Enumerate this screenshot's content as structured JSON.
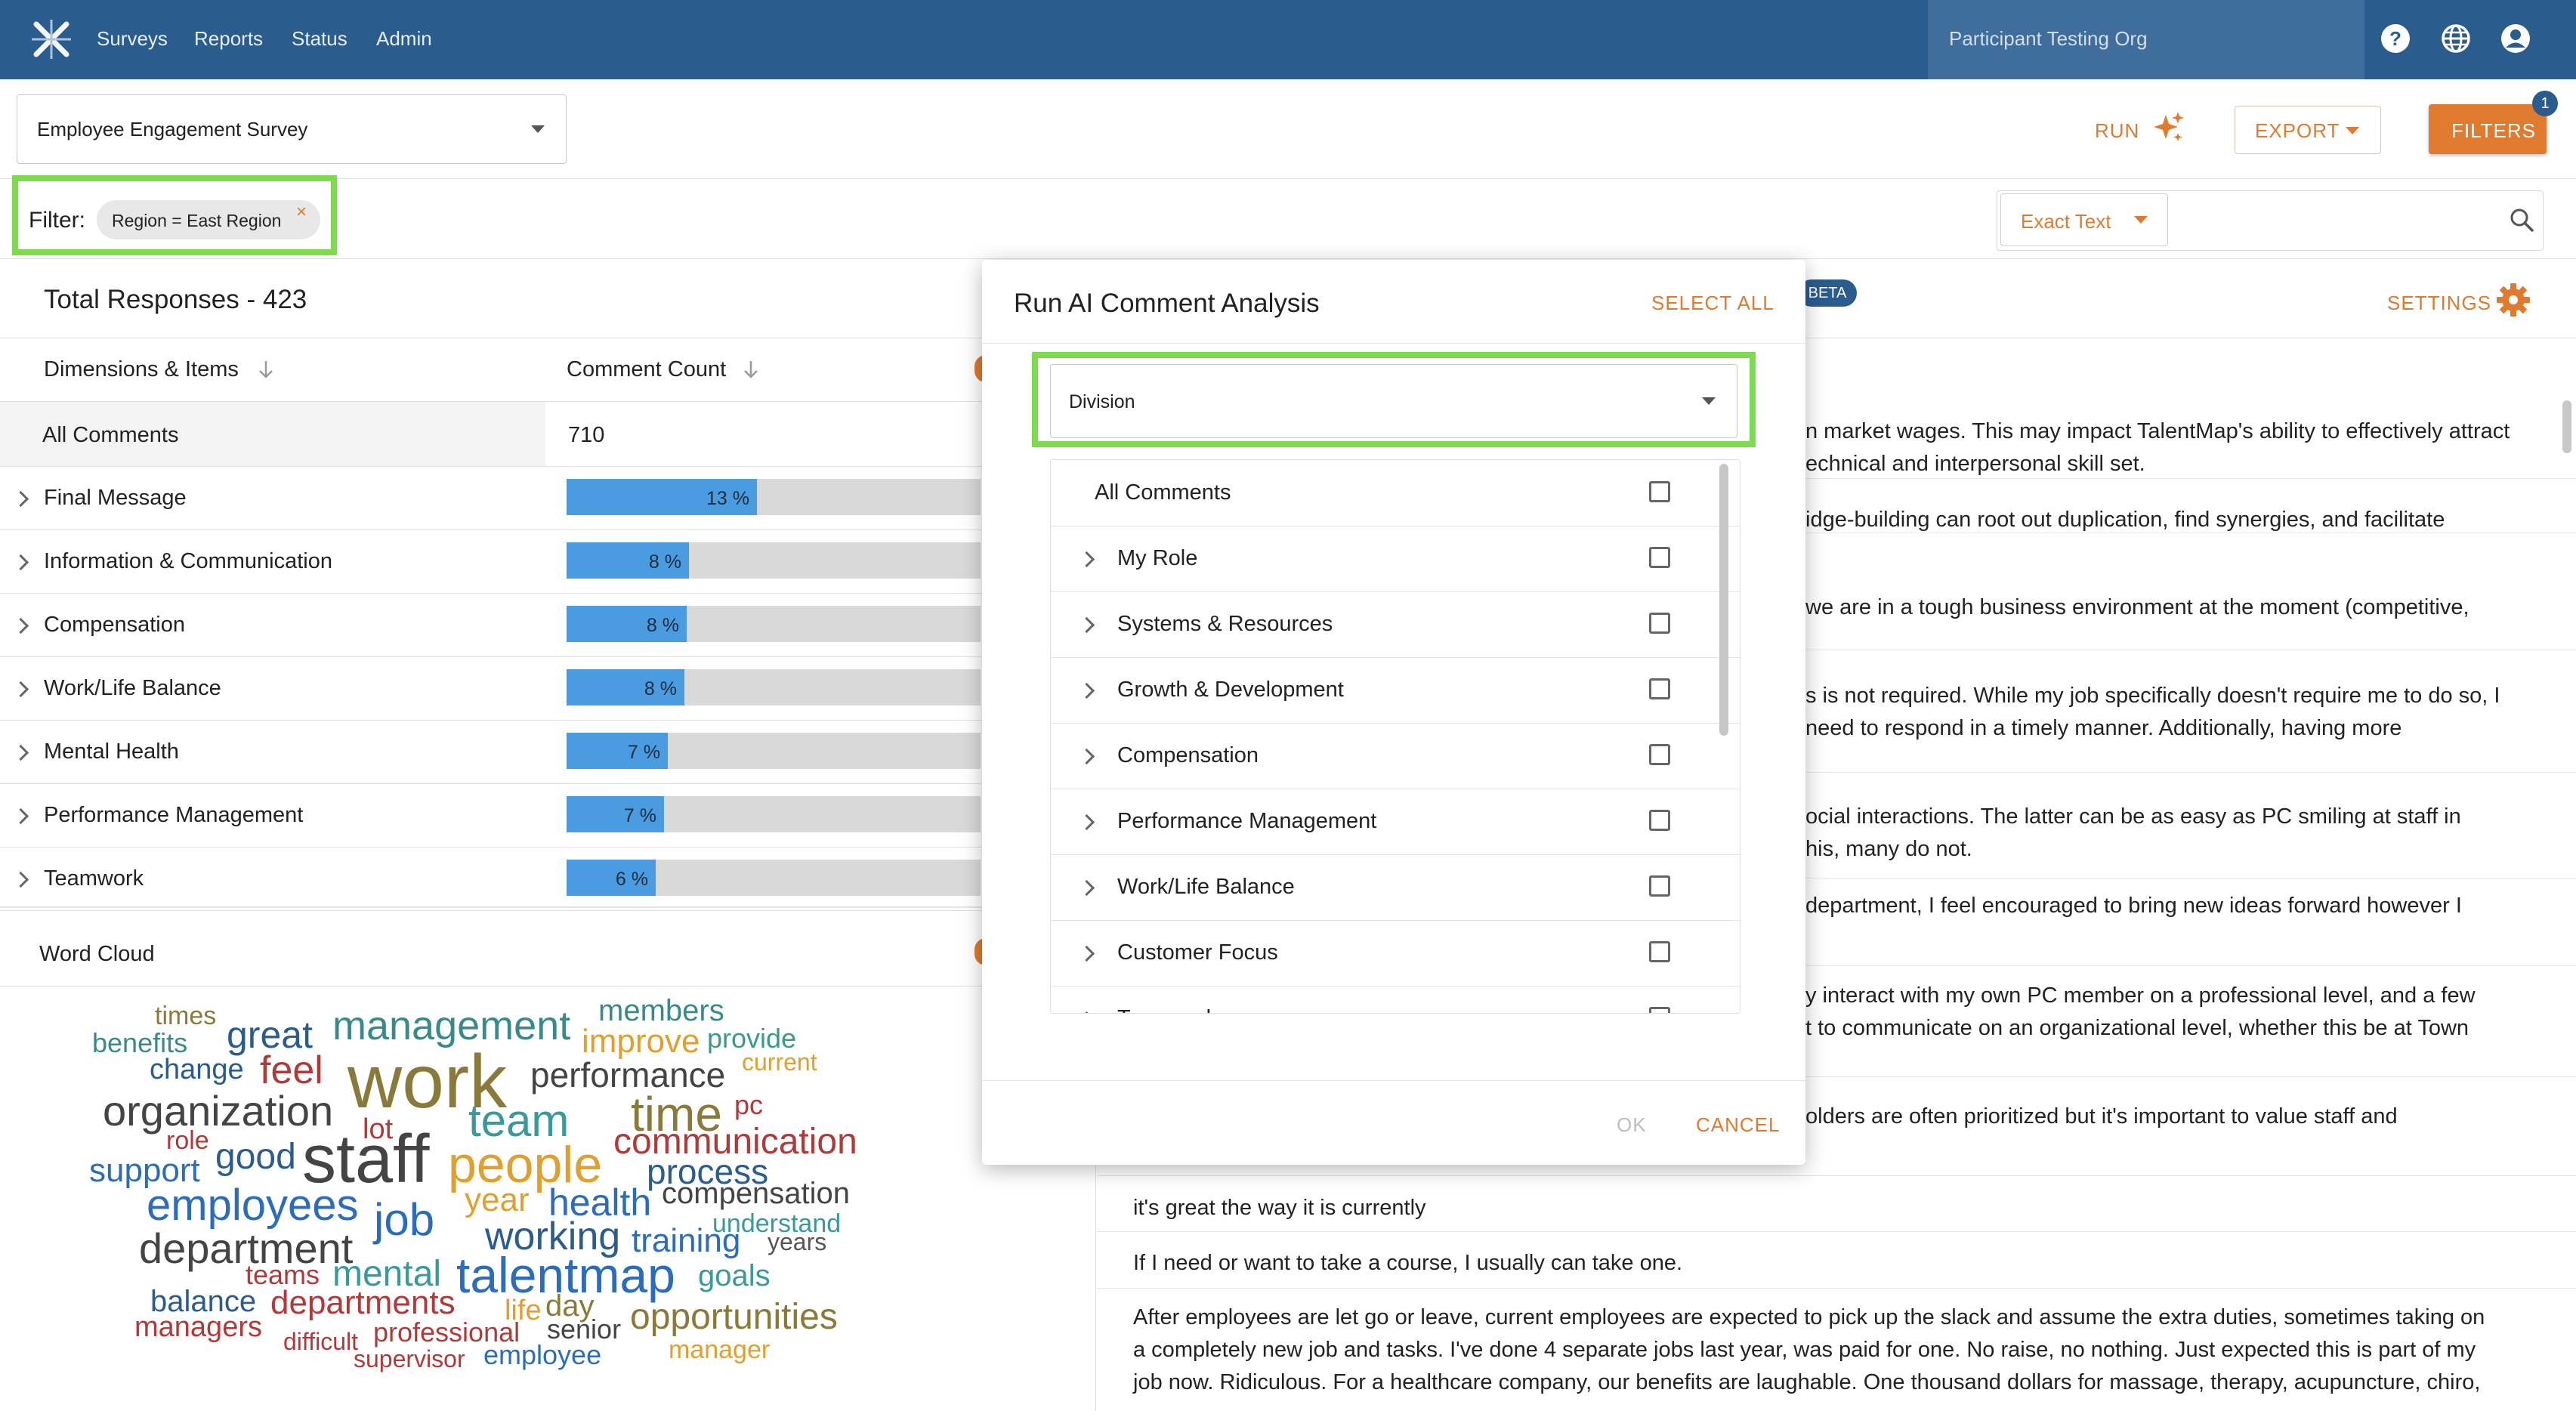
{
  "nav": {
    "links": [
      "Surveys",
      "Reports",
      "Status",
      "Admin"
    ],
    "org": "Participant Testing Org",
    "icons": [
      "help-icon",
      "globe-icon",
      "account-icon"
    ]
  },
  "toolbar": {
    "survey": "Employee Engagement Survey",
    "run": "RUN",
    "export": "EXPORT",
    "filters": "FILTERS",
    "filters_badge": "1"
  },
  "filter": {
    "label": "Filter:",
    "chip": "Region = East Region",
    "chip_remove": "×",
    "search_mode": "Exact Text"
  },
  "summary": {
    "total": "Total Responses - 423"
  },
  "table": {
    "col_dimensions": "Dimensions & Items",
    "col_count": "Comment Count",
    "all_label": "All Comments",
    "all_count": "710",
    "rows": [
      {
        "label": "Final Message",
        "pct_text": "13 %",
        "fill": 0.46
      },
      {
        "label": "Information & Communication",
        "pct_text": "8 %",
        "fill": 0.295
      },
      {
        "label": "Compensation",
        "pct_text": "8 %",
        "fill": 0.29
      },
      {
        "label": "Work/Life Balance",
        "pct_text": "8 %",
        "fill": 0.285
      },
      {
        "label": "Mental Health",
        "pct_text": "7 %",
        "fill": 0.245
      },
      {
        "label": "Performance Management",
        "pct_text": "7 %",
        "fill": 0.235
      },
      {
        "label": "Teamwork",
        "pct_text": "6 %",
        "fill": 0.215
      }
    ]
  },
  "wordcloud": {
    "title": "Word Cloud",
    "words": [
      {
        "t": "times",
        "c": "#8a7a3a"
      },
      {
        "t": "benefits",
        "c": "#3a8a8a"
      },
      {
        "t": "great",
        "c": "#2b5c8e"
      },
      {
        "t": "management",
        "c": "#3a8a8a"
      },
      {
        "t": "members",
        "c": "#3a8a8a"
      },
      {
        "t": "improve",
        "c": "#e0a030"
      },
      {
        "t": "provide",
        "c": "#3a9a8a"
      },
      {
        "t": "change",
        "c": "#2b5c8e"
      },
      {
        "t": "feel",
        "c": "#b03a3a"
      },
      {
        "t": "work",
        "c": "#8a7a3a"
      },
      {
        "t": "current",
        "c": "#e0a030"
      },
      {
        "t": "performance",
        "c": "#444444"
      },
      {
        "t": "organization",
        "c": "#444444"
      },
      {
        "t": "team",
        "c": "#3a9a9a"
      },
      {
        "t": "time",
        "c": "#8a7a3a"
      },
      {
        "t": "pc",
        "c": "#b03a3a"
      },
      {
        "t": "role",
        "c": "#b03a3a"
      },
      {
        "t": "lot",
        "c": "#b03a3a"
      },
      {
        "t": "communication",
        "c": "#b03a3a"
      },
      {
        "t": "support",
        "c": "#2b6cbd"
      },
      {
        "t": "good",
        "c": "#2b5c8e"
      },
      {
        "t": "staff",
        "c": "#444444"
      },
      {
        "t": "people",
        "c": "#e0a030"
      },
      {
        "t": "process",
        "c": "#2b5c8e"
      },
      {
        "t": "employees",
        "c": "#2b6cbd"
      },
      {
        "t": "year",
        "c": "#e0a030"
      },
      {
        "t": "health",
        "c": "#2b6cbd"
      },
      {
        "t": "compensation",
        "c": "#444444"
      },
      {
        "t": "job",
        "c": "#2b6cbd"
      },
      {
        "t": "understand",
        "c": "#3a9a9a"
      },
      {
        "t": "department",
        "c": "#444444"
      },
      {
        "t": "working",
        "c": "#2b5c8e"
      },
      {
        "t": "training",
        "c": "#2b6cbd"
      },
      {
        "t": "years",
        "c": "#555555"
      },
      {
        "t": "teams",
        "c": "#b03a3a"
      },
      {
        "t": "mental",
        "c": "#3a9a9a"
      },
      {
        "t": "talentmap",
        "c": "#2b6cbd"
      },
      {
        "t": "goals",
        "c": "#3a9a9a"
      },
      {
        "t": "balance",
        "c": "#2b5c8e"
      },
      {
        "t": "departments",
        "c": "#b03a3a"
      },
      {
        "t": "life",
        "c": "#e0a030"
      },
      {
        "t": "day",
        "c": "#8a7a3a"
      },
      {
        "t": "opportunities",
        "c": "#8a7a3a"
      },
      {
        "t": "managers",
        "c": "#b03a3a"
      },
      {
        "t": "difficult",
        "c": "#b03a3a"
      },
      {
        "t": "professional",
        "c": "#b03a3a"
      },
      {
        "t": "senior",
        "c": "#444444"
      },
      {
        "t": "manager",
        "c": "#e0a030"
      },
      {
        "t": "supervisor",
        "c": "#b03a3a"
      },
      {
        "t": "employee",
        "c": "#2b6cbd"
      }
    ]
  },
  "comments": [
    "n market wages. This may impact TalentMap's ability to effectively attract",
    "echnical and interpersonal skill set.",
    "idge-building can root out duplication, find synergies, and facilitate",
    "we are in a tough business environment at the moment (competitive,",
    "s is not required. While my job specifically doesn't require me to do so, I",
    "need to respond in a timely manner. Additionally, having more",
    "ocial interactions. The latter can be as easy as PC smiling at staff in",
    "his, many do not.",
    "department, I feel encouraged to bring new ideas forward however I",
    "y interact with my own PC member on a professional level, and a few",
    "t to communicate on an organizational level, whether this be at Town",
    "olders are often prioritized but it's important to value staff and",
    "it's great the way it is currently",
    "If I need or want to take a course, I usually can take one.",
    "After employees are let go or leave, current employees are expected to pick up the slack and assume the extra duties, sometimes taking on",
    "a completely new job and tasks. I've done 4 separate jobs last year, was paid for one. No raise, no nothing. Just expected this is part of my",
    "job now. Ridiculous. For a healthcare company, our benefits are laughable. One thousand dollars for massage, therapy, acupuncture, chiro,"
  ],
  "right_header": {
    "beta": "BETA",
    "settings": "SETTINGS"
  },
  "modal": {
    "title": "Run AI Comment Analysis",
    "select_all": "SELECT ALL",
    "dropdown": "Division",
    "items": [
      "All Comments",
      "My Role",
      "Systems & Resources",
      "Growth & Development",
      "Compensation",
      "Performance Management",
      "Work/Life Balance",
      "Customer Focus",
      "Teamwork"
    ],
    "ok": "OK",
    "cancel": "CANCEL"
  },
  "colors": {
    "nav": "#2b5c8e",
    "accent": "#e07a2f",
    "bar": "#4a9be0",
    "highlight": "#7ddc4d"
  }
}
